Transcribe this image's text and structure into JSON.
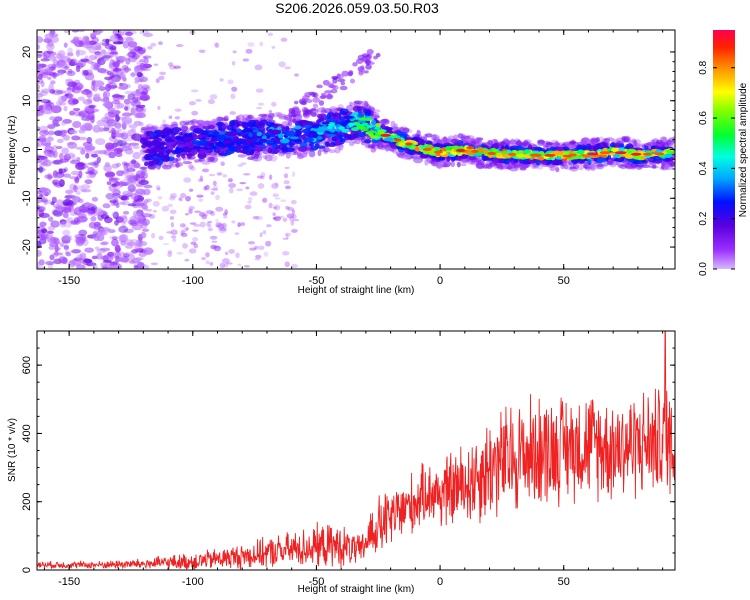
{
  "title": "S206.2026.059.03.50.R03",
  "chart_data": [
    {
      "type": "heatmap",
      "name": "spectrogram",
      "xlabel": "Height of straight line (km)",
      "ylabel": "Frequency (Hz)",
      "xlim": [
        -163,
        95
      ],
      "ylim": [
        -24.5,
        24.5
      ],
      "xticks": [
        -150,
        -100,
        -50,
        0,
        50
      ],
      "yticks": [
        -20,
        -10,
        0,
        10,
        20
      ],
      "colorbar": {
        "label": "Normalized spectral amplitude",
        "range": [
          0,
          0.95
        ],
        "ticks": [
          0.0,
          0.2,
          0.4,
          0.6,
          0.8
        ],
        "tick_labels": [
          "0.0",
          "0.2",
          "0.4",
          "0.6",
          "0.8"
        ]
      },
      "ridge": {
        "x": [
          -120,
          -100,
          -80,
          -60,
          -50,
          -40,
          -33,
          -25,
          -15,
          -5,
          0,
          10,
          20,
          30,
          40,
          50,
          60,
          70,
          80,
          95
        ],
        "freq": [
          0,
          1.5,
          2.5,
          2.8,
          3.5,
          4.5,
          6,
          3.5,
          1.5,
          0,
          -0.6,
          -0.1,
          -0.8,
          -1,
          -1.2,
          -1.2,
          -1,
          -0.5,
          -1,
          -0.8
        ],
        "peak_amplitude": [
          0.25,
          0.3,
          0.35,
          0.45,
          0.45,
          0.5,
          0.6,
          0.75,
          0.85,
          0.9,
          0.9,
          0.92,
          0.9,
          0.92,
          0.9,
          0.92,
          0.92,
          0.9,
          0.85,
          0.8
        ]
      }
    },
    {
      "type": "line",
      "name": "snr",
      "xlabel": "Height of straight line (km)",
      "ylabel": "SNR (10 * v/v)",
      "xlim": [
        -163,
        95
      ],
      "ylim": [
        0,
        700
      ],
      "xticks": [
        -150,
        -100,
        -50,
        0,
        50
      ],
      "yticks": [
        0,
        200,
        400,
        600
      ],
      "color": "#ee2222",
      "envelope": {
        "x": [
          -163,
          -140,
          -120,
          -100,
          -80,
          -60,
          -50,
          -40,
          -32,
          -28,
          -24,
          -18,
          -10,
          -5,
          0,
          10,
          20,
          30,
          40,
          50,
          60,
          70,
          80,
          90,
          95
        ],
        "mean": [
          15,
          15,
          18,
          25,
          40,
          60,
          70,
          70,
          55,
          110,
          130,
          160,
          200,
          230,
          220,
          250,
          300,
          330,
          350,
          360,
          370,
          360,
          370,
          380,
          380
        ],
        "amplitude": [
          10,
          10,
          15,
          25,
          35,
          50,
          60,
          60,
          40,
          70,
          90,
          80,
          90,
          80,
          100,
          120,
          150,
          160,
          160,
          150,
          150,
          150,
          150,
          150,
          160
        ]
      },
      "peak": {
        "x": 91,
        "y": 710
      }
    }
  ]
}
